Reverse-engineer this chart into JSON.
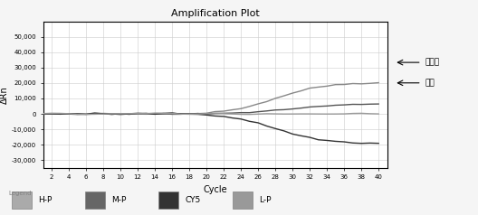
{
  "title": "Amplification Plot",
  "xlabel": "Cycle",
  "ylabel": "ΔRn",
  "xlim": [
    1,
    41
  ],
  "ylim": [
    -35000,
    60000
  ],
  "yticks": [
    -30000,
    -20000,
    -10000,
    0,
    10000,
    20000,
    30000,
    40000,
    50000
  ],
  "xticks": [
    2,
    4,
    6,
    8,
    10,
    12,
    14,
    16,
    18,
    20,
    22,
    24,
    26,
    28,
    30,
    32,
    34,
    36,
    38,
    40
  ],
  "annotation_donkey": "驴源性",
  "annotation_internal": "内标",
  "bg_color": "#f5f5f5",
  "plot_bg_color": "#ffffff",
  "grid_color": "#cccccc",
  "line_colors": {
    "HP": "#888888",
    "MP": "#555555",
    "CY5": "#333333",
    "LP": "#999999"
  },
  "legend_colors": {
    "H-P": "#aaaaaa",
    "M-P": "#666666",
    "CY5": "#333333",
    "L-P": "#999999"
  }
}
